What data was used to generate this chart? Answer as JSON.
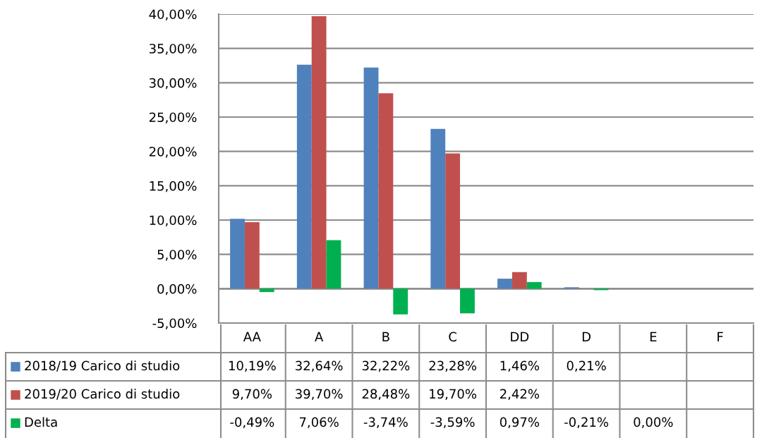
{
  "chart_data": {
    "type": "bar",
    "categories": [
      "AA",
      "A",
      "B",
      "C",
      "DD",
      "D",
      "E",
      "F"
    ],
    "series": [
      {
        "name": "2018/19 Carico di studio",
        "color": "#4f81bd",
        "values": [
          10.19,
          32.64,
          32.22,
          23.28,
          1.46,
          0.21,
          0,
          0
        ],
        "value_labels": [
          "10,19%",
          "32,64%",
          "32,22%",
          "23,28%",
          "1,46%",
          "0,21%",
          null,
          null
        ]
      },
      {
        "name": "2019/20 Carico di studio",
        "color": "#c0504d",
        "values": [
          9.7,
          39.7,
          28.48,
          19.7,
          2.42,
          0,
          0,
          0
        ],
        "value_labels": [
          "9,70%",
          "39,70%",
          "28,48%",
          "19,70%",
          "2,42%",
          null,
          null,
          null
        ]
      },
      {
        "name": "Delta",
        "color": "#00b050",
        "values": [
          -0.49,
          7.06,
          -3.74,
          -3.59,
          0.97,
          -0.21,
          0.0,
          null
        ],
        "value_labels": [
          "-0,49%",
          "7,06%",
          "-3,74%",
          "-3,59%",
          "0,97%",
          "-0,21%",
          "0,00%",
          null
        ]
      }
    ],
    "ylim": [
      -5,
      40
    ],
    "yticks": [
      {
        "value": -5,
        "label": "-5,00%"
      },
      {
        "value": 0,
        "label": "0,00%"
      },
      {
        "value": 5,
        "label": "5,00%"
      },
      {
        "value": 10,
        "label": "10,00%"
      },
      {
        "value": 15,
        "label": "15,00%"
      },
      {
        "value": 20,
        "label": "20,00%"
      },
      {
        "value": 25,
        "label": "25,00%"
      },
      {
        "value": 30,
        "label": "30,00%"
      },
      {
        "value": 35,
        "label": "35,00%"
      },
      {
        "value": 40,
        "label": "40,00%"
      }
    ],
    "grid": "y",
    "legend": "bottom left"
  }
}
